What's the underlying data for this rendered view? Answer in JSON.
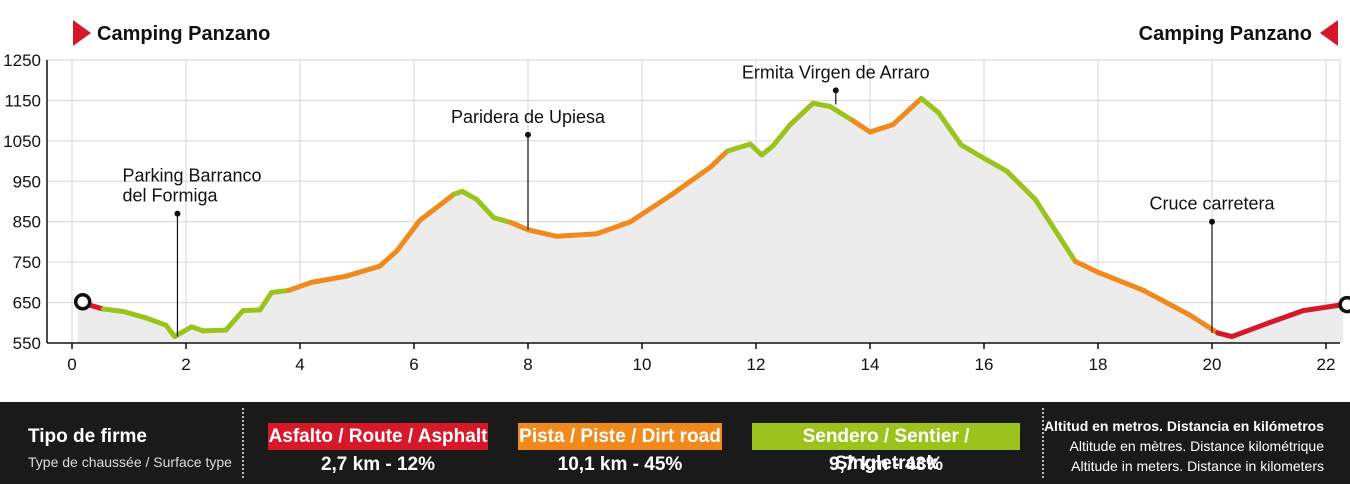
{
  "chart_data": {
    "type": "area",
    "x_ticks": [
      0,
      2,
      4,
      6,
      8,
      10,
      12,
      14,
      16,
      18,
      20,
      22
    ],
    "y_ticks": [
      550,
      650,
      750,
      850,
      950,
      1050,
      1150,
      1250
    ],
    "xlim": [
      0,
      22.5
    ],
    "ylim": [
      550,
      1250
    ],
    "grid": true,
    "surface_colors": {
      "asphalt": "#d7182a",
      "dirt": "#f08a1c",
      "singletrack": "#9bc31c"
    },
    "profile": [
      [
        0.1,
        652,
        "asphalt"
      ],
      [
        0.55,
        634,
        "asphalt"
      ],
      [
        0.9,
        628,
        "singletrack"
      ],
      [
        1.3,
        612,
        "singletrack"
      ],
      [
        1.65,
        594,
        "singletrack"
      ],
      [
        1.8,
        566,
        "singletrack"
      ],
      [
        1.95,
        578,
        "singletrack"
      ],
      [
        2.1,
        590,
        "singletrack"
      ],
      [
        2.3,
        580,
        "singletrack"
      ],
      [
        2.7,
        582,
        "singletrack"
      ],
      [
        3.0,
        630,
        "singletrack"
      ],
      [
        3.3,
        632,
        "singletrack"
      ],
      [
        3.5,
        675,
        "singletrack"
      ],
      [
        3.8,
        680,
        "singletrack"
      ],
      [
        4.2,
        700,
        "dirt"
      ],
      [
        4.8,
        715,
        "dirt"
      ],
      [
        5.4,
        740,
        "dirt"
      ],
      [
        5.7,
        778,
        "dirt"
      ],
      [
        6.1,
        853,
        "dirt"
      ],
      [
        6.7,
        918,
        "dirt"
      ],
      [
        6.85,
        925,
        "singletrack"
      ],
      [
        7.1,
        905,
        "singletrack"
      ],
      [
        7.4,
        860,
        "singletrack"
      ],
      [
        7.7,
        848,
        "singletrack"
      ],
      [
        8.0,
        830,
        "dirt"
      ],
      [
        8.5,
        814,
        "dirt"
      ],
      [
        9.2,
        820,
        "dirt"
      ],
      [
        9.8,
        850,
        "dirt"
      ],
      [
        10.5,
        915,
        "dirt"
      ],
      [
        11.2,
        985,
        "dirt"
      ],
      [
        11.5,
        1025,
        "dirt"
      ],
      [
        11.9,
        1042,
        "singletrack"
      ],
      [
        12.1,
        1015,
        "singletrack"
      ],
      [
        12.3,
        1038,
        "singletrack"
      ],
      [
        12.6,
        1090,
        "singletrack"
      ],
      [
        13.0,
        1143,
        "singletrack"
      ],
      [
        13.3,
        1135,
        "singletrack"
      ],
      [
        13.7,
        1100,
        "singletrack"
      ],
      [
        14.0,
        1072,
        "dirt"
      ],
      [
        14.4,
        1090,
        "dirt"
      ],
      [
        14.9,
        1155,
        "dirt"
      ],
      [
        15.2,
        1120,
        "singletrack"
      ],
      [
        15.6,
        1040,
        "singletrack"
      ],
      [
        15.9,
        1015,
        "singletrack"
      ],
      [
        16.4,
        975,
        "singletrack"
      ],
      [
        16.9,
        905,
        "singletrack"
      ],
      [
        17.6,
        752,
        "singletrack"
      ],
      [
        18.0,
        725,
        "dirt"
      ],
      [
        18.8,
        680,
        "dirt"
      ],
      [
        19.6,
        620,
        "dirt"
      ],
      [
        20.1,
        575,
        "dirt"
      ],
      [
        20.35,
        566,
        "asphalt"
      ],
      [
        21.0,
        600,
        "asphalt"
      ],
      [
        21.6,
        630,
        "asphalt"
      ],
      [
        22.3,
        645,
        "asphalt"
      ]
    ],
    "annotations": [
      {
        "lines": [
          "Parking Barranco",
          "del Formiga"
        ],
        "x": 1.85,
        "y": 566,
        "marker_y": 870
      },
      {
        "lines": [
          "Paridera de Upiesa"
        ],
        "x": 8.0,
        "y": 830,
        "marker_y": 1065
      },
      {
        "lines": [
          "Ermita Virgen de Arraro"
        ],
        "x": 13.4,
        "y": 1140,
        "marker_y": 1175
      },
      {
        "lines": [
          "Cruce carretera"
        ],
        "x": 20.0,
        "y": 575,
        "marker_y": 850
      }
    ],
    "start_label": "Camping Panzano",
    "end_label": "Camping Panzano"
  },
  "legend": {
    "title": "Tipo de firme",
    "subtitle": "Type de chaussée / Surface type",
    "items": [
      {
        "label": "Asfalto / Route / Asphalt",
        "stat": "2,7 km - 12%",
        "color": "#d7182a"
      },
      {
        "label": "Pista / Piste / Dirt road",
        "stat": "10,1 km - 45%",
        "color": "#f08a1c"
      },
      {
        "label": "Sendero / Sentier / Singletrack",
        "stat": "9,7 km - 43%",
        "color": "#9bc31c"
      }
    ],
    "units_line1": "Altitud en metros. Distancia en kilómetros",
    "units_line2": "Altitude en mètres. Distance kilométrique",
    "units_line3": "Altitude in meters. Distance in kilometers"
  }
}
